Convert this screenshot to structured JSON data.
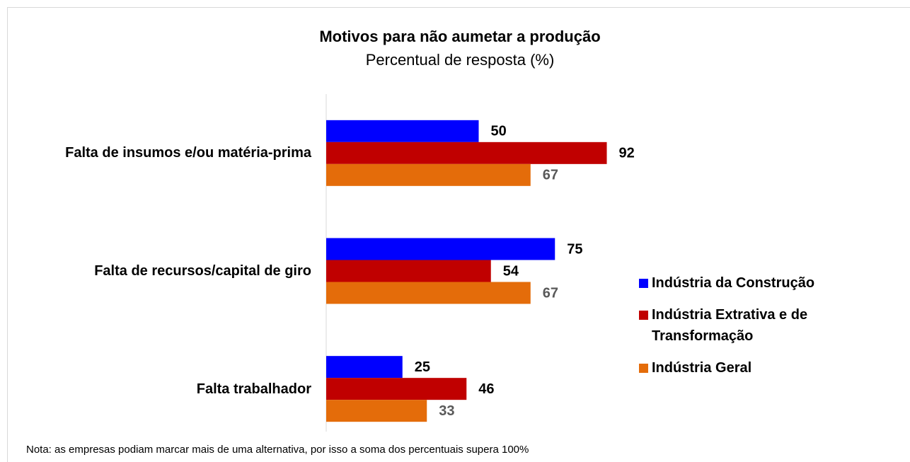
{
  "chart_data": {
    "type": "bar",
    "orientation": "horizontal",
    "title": "Motivos para não aumetar a produção",
    "subtitle": "Percentual de resposta (%)",
    "categories": [
      "Falta de insumos e/ou matéria-prima",
      "Falta de recursos/capital de giro",
      "Falta trabalhador"
    ],
    "series": [
      {
        "name": "Indústria da Construção",
        "color": "#0000ff",
        "values": [
          50,
          75,
          25
        ]
      },
      {
        "name": "Indústria Extrativa e de Transformação",
        "color": "#c00000",
        "values": [
          92,
          54,
          46
        ]
      },
      {
        "name": "Indústria Geral",
        "color": "#e46c0a",
        "values": [
          67,
          67,
          33
        ]
      }
    ],
    "xlim": [
      0,
      100
    ],
    "legend": "right",
    "note": "Nota: as empresas podiam marcar mais de uma alternativa, por isso a soma dos percentuais supera 100%"
  }
}
